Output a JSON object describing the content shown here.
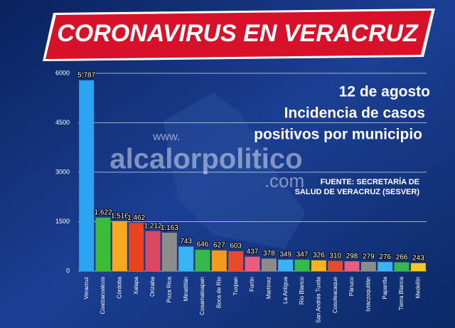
{
  "chart_data": {
    "type": "bar",
    "title": "CORONAVIRUS EN VERACRUZ",
    "date": "12 de agosto",
    "subtitle": [
      "Incidencia de casos",
      "positivos por municipio"
    ],
    "source": [
      "FUENTE: SECRETARÍA DE",
      "SALUD DE VERACRUZ (SESVER)"
    ],
    "watermark": [
      "www.",
      "alcalorpolitico",
      ".com"
    ],
    "categories": [
      "Veracruz",
      "Coatzacoalcos",
      "Córdoba",
      "Xalapa",
      "Orizaba",
      "Poza Rica",
      "Minatitlán",
      "Cosamaloapan",
      "Boca de Río",
      "Tuxpan",
      "Fortín",
      "Martínez",
      "La Antigua",
      "Río Blanco",
      "San Andrés Tuxtla",
      "Cosoleacaque",
      "Pánuco",
      "Ixtaczoquitlán",
      "Papantla",
      "Tierra Blanca",
      "Medellín"
    ],
    "values": [
      5787,
      1622,
      1516,
      1462,
      1212,
      1163,
      743,
      646,
      627,
      603,
      437,
      378,
      349,
      347,
      326,
      310,
      298,
      279,
      276,
      266,
      243
    ],
    "value_labels": [
      "5,787",
      "1,622",
      "1,516",
      "1,462",
      "1,212",
      "1,163",
      "743",
      "646",
      "627",
      "603",
      "437",
      "378",
      "349",
      "347",
      "326",
      "310",
      "298",
      "279",
      "276",
      "266",
      "243"
    ],
    "colors": [
      "#2ba4f2",
      "#3cbd3a",
      "#f7a823",
      "#e8441f",
      "#d94a62",
      "#8c8c8c",
      "#3ab3f2",
      "#37b84a",
      "#f49b1e",
      "#e84b2b",
      "#ea5d7e",
      "#8c8c8c",
      "#3ab3f2",
      "#37b84a",
      "#f5b323",
      "#e84b2b",
      "#ea5d7e",
      "#8c8c8c",
      "#3ab3f2",
      "#37b84a",
      "#f5c723"
    ],
    "ylim": [
      0,
      6000
    ],
    "yticks": [
      0,
      1500,
      3000,
      4500,
      6000
    ],
    "grid": true
  }
}
